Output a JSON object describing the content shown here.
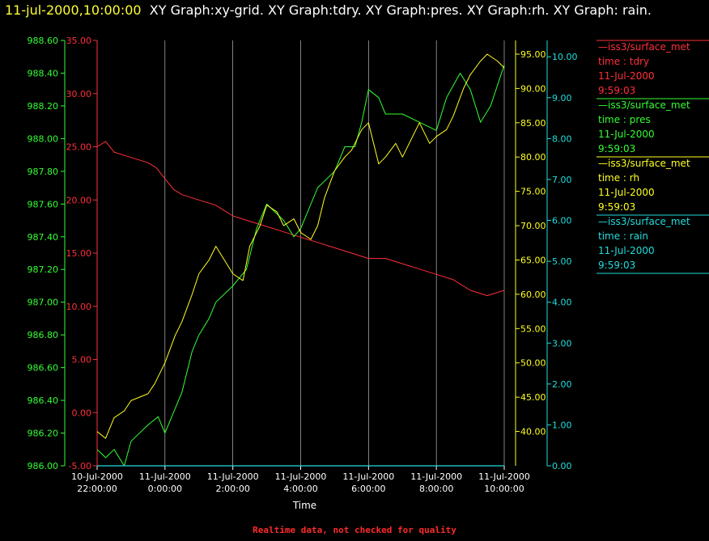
{
  "title": {
    "datetime": "11-jul-2000,10:00:00",
    "text": "XY Graph:xy-grid.  XY Graph:tdry.  XY Graph:pres.  XY Graph:rh.  XY Graph: rain."
  },
  "footer": "Realtime data, not checked for quality",
  "colors": {
    "tdry": "#ff2f3b",
    "pres": "#33ff33",
    "rh": "#ffff22",
    "rain": "#22dddd",
    "grid": "#ffffff"
  },
  "legend": [
    {
      "source": "—iss3/surface_met",
      "var": "time : tdry",
      "date": "11-Jul-2000",
      "time": "9:59:03",
      "color": "#ff2f3b"
    },
    {
      "source": "—iss3/surface_met",
      "var": "time : pres",
      "date": "11-Jul-2000",
      "time": "9:59:03",
      "color": "#33ff33"
    },
    {
      "source": "—iss3/surface_met",
      "var": "time : rh",
      "date": "11-Jul-2000",
      "time": "9:59:03",
      "color": "#ffff22"
    },
    {
      "source": "—iss3/surface_met",
      "var": "time : rain",
      "date": "11-Jul-2000",
      "time": "9:59:03",
      "color": "#22dddd"
    }
  ],
  "chart_data": {
    "type": "line",
    "xlabel": "Time",
    "grid": true,
    "xlim": [
      -2,
      10
    ],
    "x_ticks": [
      {
        "value": -2,
        "date": "10-Jul-2000",
        "time": "22:00:00"
      },
      {
        "value": 0,
        "date": "11-Jul-2000",
        "time": "0:00:00"
      },
      {
        "value": 2,
        "date": "11-Jul-2000",
        "time": "2:00:00"
      },
      {
        "value": 4,
        "date": "11-Jul-2000",
        "time": "4:00:00"
      },
      {
        "value": 6,
        "date": "11-Jul-2000",
        "time": "6:00:00"
      },
      {
        "value": 8,
        "date": "11-Jul-2000",
        "time": "8:00:00"
      },
      {
        "value": 10,
        "date": "11-Jul-2000",
        "time": "10:00:00"
      }
    ],
    "axes": {
      "pres": {
        "side": "left-outer",
        "ylim": [
          986.0,
          988.6
        ],
        "ticks": [
          "986.00",
          "986.20",
          "986.40",
          "986.60",
          "986.80",
          "987.00",
          "987.20",
          "987.40",
          "987.60",
          "987.80",
          "988.00",
          "988.20",
          "988.40",
          "988.60"
        ]
      },
      "tdry": {
        "side": "left-inner",
        "ylim": [
          -5.0,
          35.0
        ],
        "ticks": [
          "-5.00",
          "0.00",
          "5.00",
          "10.00",
          "15.00",
          "20.00",
          "25.00",
          "30.00",
          "35.00"
        ]
      },
      "rh": {
        "side": "right-inner",
        "ylim": [
          35.0,
          97.0
        ],
        "ticks": [
          "40.00",
          "45.00",
          "50.00",
          "55.00",
          "60.00",
          "65.00",
          "70.00",
          "75.00",
          "80.00",
          "85.00",
          "90.00",
          "95.00"
        ]
      },
      "rain": {
        "side": "right-outer",
        "ylim": [
          0.0,
          10.4
        ],
        "ticks": [
          "0.00",
          "1.00",
          "2.00",
          "3.00",
          "4.00",
          "5.00",
          "6.00",
          "7.00",
          "8.00",
          "9.00",
          "10.00"
        ]
      }
    },
    "series": [
      {
        "name": "tdry",
        "axis": "tdry",
        "x": [
          -2.0,
          -1.75,
          -1.5,
          -1.0,
          -0.5,
          -0.25,
          0.0,
          0.25,
          0.5,
          1.0,
          1.5,
          1.75,
          2.0,
          2.5,
          3.0,
          3.5,
          4.0,
          4.5,
          5.0,
          5.5,
          6.0,
          6.5,
          7.0,
          7.5,
          8.0,
          8.5,
          9.0,
          9.5,
          10.0
        ],
        "values": [
          25.0,
          25.5,
          24.5,
          24.0,
          23.5,
          23.0,
          22.0,
          21.0,
          20.5,
          20.0,
          19.5,
          19.0,
          18.5,
          18.0,
          17.5,
          17.0,
          16.5,
          16.0,
          15.5,
          15.0,
          14.5,
          14.5,
          14.0,
          13.5,
          13.0,
          12.5,
          11.5,
          11.0,
          11.5
        ]
      },
      {
        "name": "pres",
        "axis": "pres",
        "x": [
          -2.0,
          -1.75,
          -1.5,
          -1.2,
          -1.0,
          -0.5,
          -0.2,
          0.0,
          0.5,
          0.8,
          1.0,
          1.3,
          1.5,
          2.0,
          2.4,
          2.7,
          3.0,
          3.5,
          3.8,
          4.0,
          4.5,
          5.0,
          5.3,
          5.6,
          5.8,
          6.0,
          6.3,
          6.5,
          7.0,
          7.5,
          8.0,
          8.3,
          8.7,
          9.0,
          9.3,
          9.6,
          10.0
        ],
        "values": [
          986.1,
          986.05,
          986.1,
          986.0,
          986.15,
          986.25,
          986.3,
          986.2,
          986.45,
          986.7,
          986.8,
          986.9,
          987.0,
          987.1,
          987.2,
          987.45,
          987.6,
          987.5,
          987.4,
          987.45,
          987.7,
          987.8,
          987.95,
          987.95,
          988.1,
          988.3,
          988.25,
          988.15,
          988.15,
          988.1,
          988.05,
          988.25,
          988.4,
          988.3,
          988.1,
          988.2,
          988.45
        ]
      },
      {
        "name": "rh",
        "axis": "rh",
        "x": [
          -2.0,
          -1.75,
          -1.5,
          -1.2,
          -1.0,
          -0.5,
          -0.3,
          0.0,
          0.3,
          0.5,
          0.8,
          1.0,
          1.3,
          1.5,
          1.75,
          2.0,
          2.3,
          2.5,
          2.8,
          3.0,
          3.3,
          3.5,
          3.8,
          4.0,
          4.3,
          4.5,
          4.7,
          5.0,
          5.3,
          5.5,
          5.8,
          6.0,
          6.3,
          6.5,
          6.8,
          7.0,
          7.3,
          7.5,
          7.8,
          8.0,
          8.3,
          8.5,
          8.8,
          9.0,
          9.3,
          9.5,
          9.8,
          10.0
        ],
        "values": [
          40.0,
          39.0,
          42.0,
          43.0,
          44.5,
          45.5,
          47.0,
          50.0,
          54.0,
          56.0,
          60.0,
          63.0,
          65.0,
          67.0,
          65.0,
          63.0,
          62.0,
          67.0,
          70.0,
          73.0,
          72.0,
          70.0,
          71.0,
          69.0,
          68.0,
          70.0,
          74.0,
          78.0,
          80.0,
          81.0,
          84.0,
          85.0,
          79.0,
          80.0,
          82.0,
          80.0,
          83.0,
          85.0,
          82.0,
          83.0,
          84.0,
          86.0,
          90.0,
          92.0,
          94.0,
          95.0,
          94.0,
          93.0
        ]
      },
      {
        "name": "rain",
        "axis": "rain",
        "x": [
          -2.0,
          10.0
        ],
        "values": [
          0.0,
          0.0
        ]
      }
    ]
  }
}
